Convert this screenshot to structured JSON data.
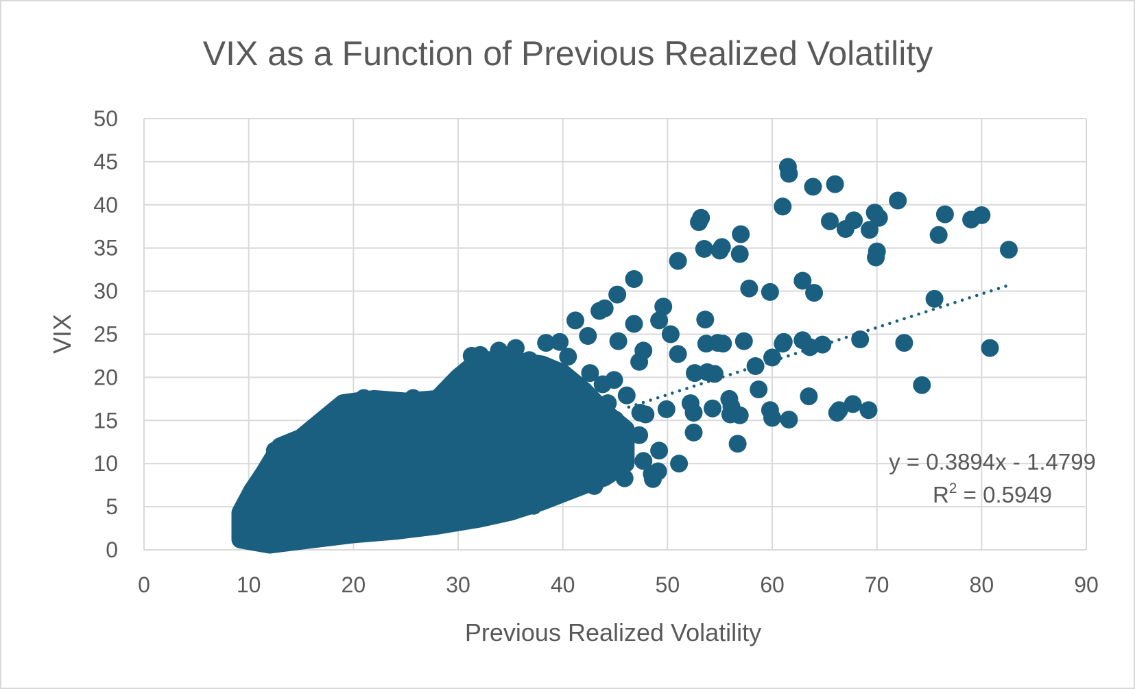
{
  "chart_data": {
    "type": "scatter",
    "title": "VIX as a Function of Previous Realized Volatility",
    "xlabel": "Previous Realized Volatility",
    "ylabel": "VIX",
    "xlim": [
      0,
      90
    ],
    "ylim": [
      0,
      50
    ],
    "x_ticks": [
      0,
      10,
      20,
      30,
      40,
      50,
      60,
      70,
      80,
      90
    ],
    "y_ticks": [
      0,
      5,
      10,
      15,
      20,
      25,
      30,
      35,
      40,
      45,
      50
    ],
    "x_tick_labels": [
      "0",
      "10",
      "20",
      "30",
      "40",
      "50",
      "60",
      "70",
      "80",
      "90"
    ],
    "y_tick_labels": [
      "0",
      "5",
      "10",
      "15",
      "20",
      "25",
      "30",
      "35",
      "40",
      "45",
      "50"
    ],
    "grid": true,
    "legend": "none",
    "marker_color": "#1a5f80",
    "trendline": {
      "type": "linear",
      "slope": 0.3894,
      "intercept": -1.4799,
      "x_range": [
        46.3,
        82.7
      ],
      "equation_label": "y = 0.3894x - 1.4799",
      "r2_label_prefix": "R",
      "r2_label_sup": "2",
      "r2_label_suffix": " = 0.5949"
    },
    "cluster": {
      "description_note": "",
      "x_range": [
        9,
        46
      ],
      "outline": [
        [
          9.2,
          1.2
        ],
        [
          12,
          0.6
        ],
        [
          16,
          1.2
        ],
        [
          20,
          1.8
        ],
        [
          24,
          2.2
        ],
        [
          28,
          2.8
        ],
        [
          32,
          3.6
        ],
        [
          35,
          4.4
        ],
        [
          38,
          5.6
        ],
        [
          41,
          7.0
        ],
        [
          44,
          8.4
        ],
        [
          46,
          10.0
        ],
        [
          46,
          14.0
        ],
        [
          44,
          16.0
        ],
        [
          42,
          18.5
        ],
        [
          40,
          20.5
        ],
        [
          38,
          21.5
        ],
        [
          35,
          22.0
        ],
        [
          32,
          22.0
        ],
        [
          30,
          20.0
        ],
        [
          28,
          17.5
        ],
        [
          25,
          17.2
        ],
        [
          22,
          17.5
        ],
        [
          19,
          17.0
        ],
        [
          17,
          15.0
        ],
        [
          15,
          13.0
        ],
        [
          13,
          12.0
        ],
        [
          11.5,
          9.0
        ],
        [
          10.3,
          6.8
        ],
        [
          9.2,
          4.3
        ]
      ]
    },
    "points": [
      [
        61.5,
        44.4
      ],
      [
        61.6,
        43.6
      ],
      [
        66.0,
        42.4
      ],
      [
        63.9,
        42.1
      ],
      [
        72.0,
        40.5
      ],
      [
        61.0,
        39.8
      ],
      [
        76.5,
        38.9
      ],
      [
        80.0,
        38.8
      ],
      [
        79.0,
        38.3
      ],
      [
        65.5,
        38.1
      ],
      [
        67.8,
        38.2
      ],
      [
        69.8,
        39.1
      ],
      [
        70.2,
        38.5
      ],
      [
        67.0,
        37.2
      ],
      [
        69.3,
        37.1
      ],
      [
        53.2,
        38.5
      ],
      [
        53.0,
        38.0
      ],
      [
        57.0,
        36.6
      ],
      [
        75.9,
        36.5
      ],
      [
        53.5,
        34.9
      ],
      [
        55.2,
        35.1
      ],
      [
        55.0,
        34.7
      ],
      [
        56.9,
        34.3
      ],
      [
        70.0,
        34.6
      ],
      [
        69.9,
        33.9
      ],
      [
        82.6,
        34.8
      ],
      [
        51.0,
        33.5
      ],
      [
        46.8,
        31.4
      ],
      [
        62.9,
        31.2
      ],
      [
        57.8,
        30.3
      ],
      [
        59.8,
        29.9
      ],
      [
        64.0,
        29.8
      ],
      [
        45.2,
        29.6
      ],
      [
        75.5,
        29.1
      ],
      [
        49.6,
        28.2
      ],
      [
        44.0,
        28.0
      ],
      [
        43.5,
        27.7
      ],
      [
        41.2,
        26.6
      ],
      [
        53.6,
        26.7
      ],
      [
        49.2,
        26.6
      ],
      [
        46.8,
        26.2
      ],
      [
        50.3,
        25.0
      ],
      [
        45.3,
        24.2
      ],
      [
        62.9,
        24.3
      ],
      [
        64.8,
        23.8
      ],
      [
        61.0,
        23.9
      ],
      [
        61.1,
        24.1
      ],
      [
        57.3,
        24.2
      ],
      [
        55.3,
        23.9
      ],
      [
        54.8,
        24.0
      ],
      [
        53.7,
        23.9
      ],
      [
        63.6,
        23.5
      ],
      [
        68.4,
        24.4
      ],
      [
        72.6,
        24.0
      ],
      [
        80.8,
        23.4
      ],
      [
        47.7,
        23.1
      ],
      [
        32.1,
        22.6
      ],
      [
        31.3,
        22.5
      ],
      [
        33.9,
        23.1
      ],
      [
        35.5,
        23.4
      ],
      [
        38.4,
        24.0
      ],
      [
        39.7,
        24.1
      ],
      [
        42.4,
        24.8
      ],
      [
        51.0,
        22.7
      ],
      [
        60.0,
        22.3
      ],
      [
        47.3,
        21.8
      ],
      [
        58.4,
        21.3
      ],
      [
        53.8,
        20.6
      ],
      [
        52.6,
        20.5
      ],
      [
        54.5,
        20.4
      ],
      [
        44.9,
        19.7
      ],
      [
        74.3,
        19.1
      ],
      [
        58.7,
        18.6
      ],
      [
        63.5,
        17.8
      ],
      [
        46.1,
        17.9
      ],
      [
        55.9,
        17.5
      ],
      [
        52.2,
        17.0
      ],
      [
        56.1,
        16.6
      ],
      [
        67.7,
        16.9
      ],
      [
        66.4,
        16.2
      ],
      [
        66.2,
        15.9
      ],
      [
        69.2,
        16.2
      ],
      [
        59.8,
        16.2
      ],
      [
        60.0,
        15.3
      ],
      [
        61.6,
        15.1
      ],
      [
        54.3,
        16.4
      ],
      [
        49.9,
        16.3
      ],
      [
        56.0,
        15.7
      ],
      [
        56.9,
        15.6
      ],
      [
        47.9,
        15.7
      ],
      [
        47.4,
        15.9
      ],
      [
        52.5,
        15.9
      ],
      [
        47.3,
        13.3
      ],
      [
        52.5,
        13.6
      ],
      [
        56.7,
        12.3
      ],
      [
        49.2,
        11.5
      ],
      [
        47.7,
        10.3
      ],
      [
        51.1,
        10.0
      ],
      [
        49.1,
        9.1
      ],
      [
        48.5,
        8.8
      ],
      [
        48.6,
        8.2
      ],
      [
        45.9,
        8.3
      ],
      [
        43.0,
        7.4
      ],
      [
        37.2,
        5.1
      ],
      [
        42.0,
        10.5
      ],
      [
        44.5,
        9.5
      ],
      [
        41.2,
        12.1
      ],
      [
        43.9,
        11.0
      ],
      [
        46.0,
        11.8
      ],
      [
        45.5,
        13.9
      ],
      [
        44.0,
        15.6
      ],
      [
        42.4,
        16.0
      ],
      [
        41.0,
        17.0
      ],
      [
        43.0,
        14.2
      ],
      [
        40.3,
        19.9
      ],
      [
        39.0,
        19.5
      ],
      [
        37.6,
        21.5
      ],
      [
        35.9,
        21.0
      ],
      [
        34.8,
        18.4
      ],
      [
        33.1,
        18.5
      ],
      [
        31.6,
        17.3
      ],
      [
        30.6,
        18.1
      ],
      [
        29.6,
        16.5
      ],
      [
        28.4,
        17.4
      ],
      [
        27.9,
        17.0
      ],
      [
        25.7,
        17.6
      ],
      [
        24.3,
        16.5
      ],
      [
        22.1,
        17.3
      ],
      [
        21.0,
        17.6
      ],
      [
        19.5,
        16.7
      ],
      [
        18.3,
        14.8
      ],
      [
        17.5,
        14.6
      ],
      [
        16.9,
        14.3
      ],
      [
        16.0,
        12.8
      ],
      [
        15.2,
        12.5
      ],
      [
        14.5,
        11.9
      ],
      [
        13.3,
        11.8
      ],
      [
        12.5,
        11.5
      ],
      [
        12.2,
        10.0
      ],
      [
        11.6,
        7.8
      ],
      [
        11.0,
        7.0
      ],
      [
        10.5,
        6.2
      ],
      [
        10.0,
        4.5
      ],
      [
        9.6,
        4.2
      ],
      [
        9.3,
        3.0
      ],
      [
        9.2,
        2.0
      ],
      [
        9.8,
        1.5
      ],
      [
        10.8,
        1.0
      ],
      [
        12.0,
        0.8
      ],
      [
        13.4,
        1.2
      ],
      [
        15.0,
        1.3
      ],
      [
        18.3,
        1.9
      ],
      [
        21.5,
        2.6
      ],
      [
        25.0,
        2.5
      ],
      [
        27.4,
        3.0
      ],
      [
        30.0,
        3.8
      ],
      [
        31.0,
        3.6
      ],
      [
        33.4,
        4.6
      ],
      [
        35.2,
        5.8
      ],
      [
        37.9,
        6.4
      ],
      [
        39.5,
        6.8
      ],
      [
        40.8,
        8.1
      ],
      [
        41.6,
        9.2
      ],
      [
        43.5,
        11.8
      ],
      [
        45.0,
        15.1
      ],
      [
        44.3,
        17.0
      ],
      [
        43.8,
        19.2
      ],
      [
        42.6,
        20.5
      ],
      [
        40.5,
        22.4
      ],
      [
        36.8,
        22.0
      ],
      [
        31.4,
        21.8
      ],
      [
        32.2,
        21.0
      ],
      [
        31.6,
        19.6
      ],
      [
        30.9,
        19.0
      ]
    ]
  }
}
